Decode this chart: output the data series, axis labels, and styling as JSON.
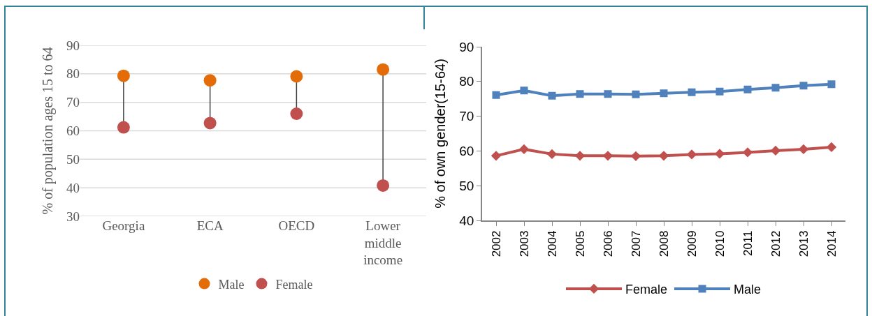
{
  "chart_data": [
    {
      "type": "scatter",
      "ylabel": "% of population ages 15 to 64",
      "categories": [
        "Georgia",
        "ECA",
        "OECD",
        "Lower middle income"
      ],
      "series": [
        {
          "name": "Male",
          "color": "#e36c09",
          "values": [
            79.3,
            77.7,
            79.1,
            81.5
          ]
        },
        {
          "name": "Female",
          "color": "#c0504d",
          "values": [
            61.2,
            62.7,
            66.0,
            40.8
          ]
        }
      ],
      "ylim": [
        30,
        90
      ],
      "yticks": [
        30,
        40,
        50,
        60,
        70,
        80,
        90
      ],
      "grid": "y",
      "legend": "bottom",
      "marker": "circle"
    },
    {
      "type": "line",
      "ylabel": "% of own gender(15-64)",
      "categories": [
        "2002",
        "2003",
        "2004",
        "2005",
        "2006",
        "2007",
        "2008",
        "2009",
        "2010",
        "2011",
        "2012",
        "2013",
        "2014"
      ],
      "series": [
        {
          "name": "Female",
          "color": "#c0504d",
          "marker": "diamond",
          "values": [
            58.6,
            60.5,
            59.1,
            58.6,
            58.6,
            58.5,
            58.6,
            59.0,
            59.2,
            59.6,
            60.1,
            60.5,
            61.1
          ]
        },
        {
          "name": "Male",
          "color": "#4f81bd",
          "marker": "square",
          "values": [
            76.1,
            77.4,
            75.9,
            76.4,
            76.4,
            76.3,
            76.6,
            76.9,
            77.1,
            77.7,
            78.2,
            78.8,
            79.2
          ]
        }
      ],
      "ylim": [
        40,
        90
      ],
      "yticks": [
        40,
        50,
        60,
        70,
        80,
        90
      ],
      "grid": false,
      "legend": "bottom",
      "line_style": "solid"
    }
  ]
}
